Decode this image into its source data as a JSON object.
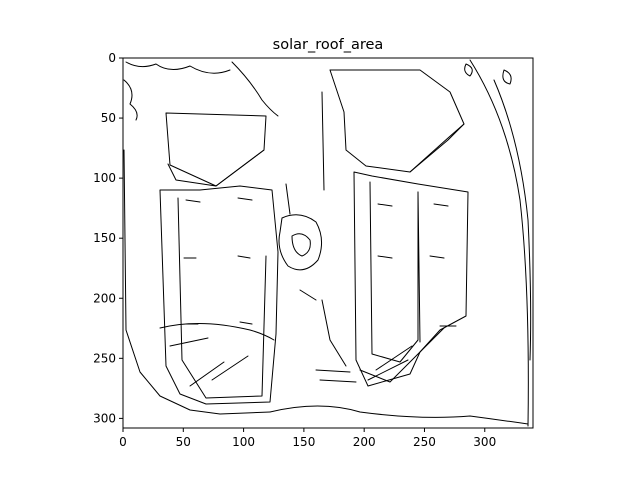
{
  "title": "solar_roof_area",
  "image": {
    "width_units": 340,
    "height_units": 308,
    "colormap": "binary edge map"
  },
  "axes": {
    "x_ticks": [
      0,
      50,
      100,
      150,
      200,
      250,
      300
    ],
    "y_ticks": [
      0,
      50,
      100,
      150,
      200,
      250,
      300
    ],
    "xlim": [
      0,
      340
    ],
    "ylim": [
      308,
      0
    ]
  }
}
